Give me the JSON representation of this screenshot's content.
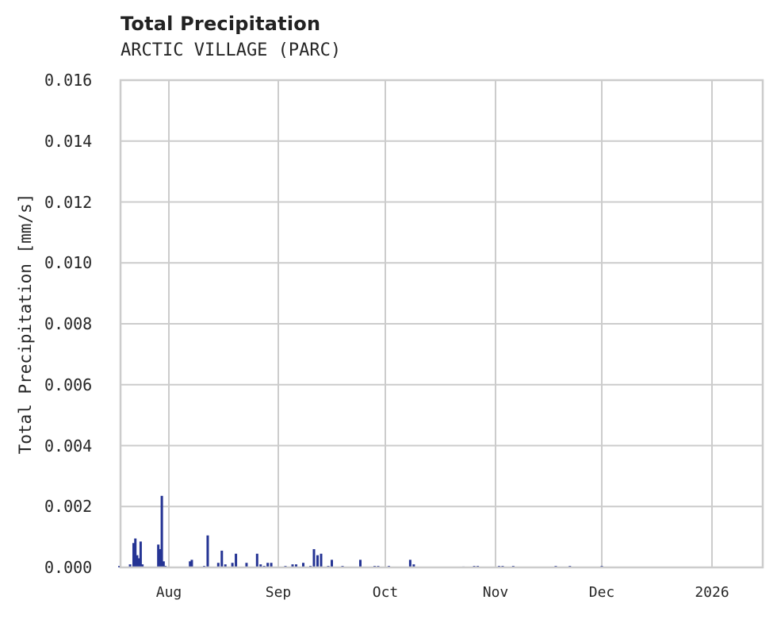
{
  "header": {
    "title": "Total Precipitation",
    "subtitle": "ARCTIC VILLAGE (PARC)"
  },
  "colors": {
    "series": "#253494",
    "grid": "#cccccc",
    "text": "#262626"
  },
  "chart_data": {
    "type": "area",
    "title": "Total Precipitation",
    "subtitle": "ARCTIC VILLAGE (PARC)",
    "xlabel": "",
    "ylabel": "Total Precipitation [mm/s]",
    "ylim": [
      0,
      0.016
    ],
    "xlim": [
      "2025-07-18",
      "2026-01-15"
    ],
    "grid": true,
    "legend": "none",
    "yticks": [
      "0.000",
      "0.002",
      "0.004",
      "0.006",
      "0.008",
      "0.010",
      "0.012",
      "0.014",
      "0.016"
    ],
    "xticks": [
      "Aug",
      "Sep",
      "Oct",
      "Nov",
      "Dec",
      "2026"
    ],
    "series": [
      {
        "name": "Total Precipitation",
        "color": "#253494",
        "points": [
          [
            "2025-07-18",
            5e-05
          ],
          [
            "2025-07-21",
            0.0001
          ],
          [
            "2025-07-22",
            0.0008
          ],
          [
            "2025-07-22.5",
            0.00095
          ],
          [
            "2025-07-23",
            0.0004
          ],
          [
            "2025-07-23.5",
            0.0003
          ],
          [
            "2025-07-24",
            0.00085
          ],
          [
            "2025-07-24.5",
            0.0001
          ],
          [
            "2025-07-29",
            0.00075
          ],
          [
            "2025-07-29.5",
            0.0006
          ],
          [
            "2025-07-30",
            0.00235
          ],
          [
            "2025-07-30.5",
            0.0002
          ],
          [
            "2025-07-31",
            5e-05
          ],
          [
            "2025-08-07",
            0.0002
          ],
          [
            "2025-08-07.5",
            0.00025
          ],
          [
            "2025-08-11",
            5e-05
          ],
          [
            "2025-08-12",
            0.00105
          ],
          [
            "2025-08-15",
            0.00015
          ],
          [
            "2025-08-16",
            0.00055
          ],
          [
            "2025-08-17",
            0.0001
          ],
          [
            "2025-08-19",
            0.00015
          ],
          [
            "2025-08-20",
            0.00045
          ],
          [
            "2025-08-23",
            0.00015
          ],
          [
            "2025-08-26",
            0.00045
          ],
          [
            "2025-08-27",
            0.0001
          ],
          [
            "2025-08-28",
            5e-05
          ],
          [
            "2025-08-29",
            0.00015
          ],
          [
            "2025-08-30",
            0.00015
          ],
          [
            "2025-09-03",
            5e-05
          ],
          [
            "2025-09-05",
            0.0001
          ],
          [
            "2025-09-06",
            0.0001
          ],
          [
            "2025-09-08",
            0.00015
          ],
          [
            "2025-09-10",
            5e-05
          ],
          [
            "2025-09-11",
            0.0006
          ],
          [
            "2025-09-12",
            0.0004
          ],
          [
            "2025-09-13",
            0.00045
          ],
          [
            "2025-09-15",
            5e-05
          ],
          [
            "2025-09-16",
            0.00025
          ],
          [
            "2025-09-19",
            5e-05
          ],
          [
            "2025-09-24",
            0.00025
          ],
          [
            "2025-09-28",
            5e-05
          ],
          [
            "2025-09-29",
            5e-05
          ],
          [
            "2025-10-02",
            5e-05
          ],
          [
            "2025-10-08",
            0.00025
          ],
          [
            "2025-10-09",
            0.0001
          ],
          [
            "2025-10-23",
            3e-05
          ],
          [
            "2025-10-26",
            5e-05
          ],
          [
            "2025-10-27",
            5e-05
          ],
          [
            "2025-11-02",
            5e-05
          ],
          [
            "2025-11-03",
            5e-05
          ],
          [
            "2025-11-06",
            5e-05
          ],
          [
            "2025-11-18",
            5e-05
          ],
          [
            "2025-11-22",
            5e-05
          ],
          [
            "2025-12-01",
            5e-05
          ]
        ]
      }
    ]
  }
}
